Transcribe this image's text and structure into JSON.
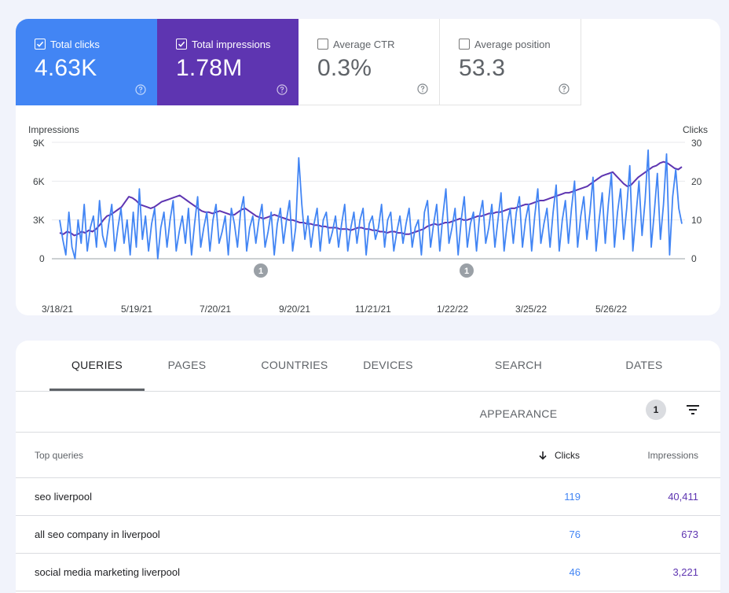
{
  "metrics": [
    {
      "label": "Total clicks",
      "value": "4.63K",
      "checked": true,
      "color": "#4285f4"
    },
    {
      "label": "Total impressions",
      "value": "1.78M",
      "checked": true,
      "color": "#5e35b1"
    },
    {
      "label": "Average CTR",
      "value": "0.3%",
      "checked": false
    },
    {
      "label": "Average position",
      "value": "53.3",
      "checked": false
    }
  ],
  "chart": {
    "left_axis_title": "Impressions",
    "right_axis_title": "Clicks",
    "left_ticks": [
      "9K",
      "6K",
      "3K",
      "0"
    ],
    "right_ticks": [
      "30",
      "20",
      "10",
      "0"
    ],
    "x_ticks": [
      "3/18/21",
      "5/19/21",
      "7/20/21",
      "9/20/21",
      "11/21/21",
      "1/22/22",
      "3/25/22",
      "5/26/22"
    ],
    "annotations": [
      "1",
      "1"
    ]
  },
  "chart_data": {
    "type": "line",
    "left_ylabel": "Impressions",
    "right_ylabel": "Clicks",
    "left_ylim": [
      0,
      9000
    ],
    "right_ylim": [
      0,
      30
    ],
    "x_start": "3/18/21",
    "x_end": "7/5/22",
    "grid": true,
    "series": [
      {
        "name": "Clicks",
        "axis": "right",
        "color": "#4285f4",
        "values": [
          10,
          5,
          1,
          12,
          3,
          0,
          10,
          4,
          14,
          2,
          8,
          11,
          3,
          15,
          6,
          3,
          9,
          14,
          2,
          8,
          13,
          4,
          10,
          1,
          12,
          3,
          18,
          5,
          11,
          2,
          9,
          13,
          0,
          8,
          12,
          3,
          10,
          15,
          2,
          7,
          11,
          4,
          13,
          1,
          9,
          16,
          3,
          8,
          12,
          2,
          10,
          14,
          4,
          7,
          11,
          1,
          13,
          9,
          3,
          12,
          16,
          2,
          8,
          11,
          4,
          10,
          14,
          3,
          7,
          12,
          1,
          9,
          13,
          4,
          10,
          15,
          2,
          8,
          26,
          14,
          5,
          11,
          3,
          9,
          13,
          2,
          10,
          12,
          4,
          7,
          11,
          3,
          9,
          14,
          2,
          8,
          12,
          4,
          10,
          13,
          1,
          9,
          11,
          5,
          8,
          14,
          3,
          10,
          12,
          2,
          7,
          11,
          4,
          9,
          13,
          3,
          8,
          10,
          1,
          12,
          15,
          3,
          9,
          14,
          2,
          11,
          18,
          4,
          8,
          13,
          1,
          10,
          16,
          3,
          9,
          12,
          2,
          11,
          15,
          4,
          8,
          14,
          3,
          10,
          17,
          2,
          9,
          13,
          4,
          12,
          16,
          3,
          10,
          14,
          2,
          11,
          18,
          4,
          9,
          13,
          3,
          12,
          19,
          2,
          10,
          15,
          4,
          13,
          20,
          3,
          11,
          16,
          5,
          12,
          21,
          2,
          10,
          17,
          4,
          14,
          22,
          3,
          12,
          18,
          5,
          13,
          24,
          2,
          11,
          20,
          6,
          15,
          28,
          3,
          12,
          22,
          5,
          14,
          27,
          1,
          16,
          23,
          13,
          9
        ]
      },
      {
        "name": "Impressions",
        "axis": "left",
        "color": "#5e35b1",
        "values": [
          2000,
          1900,
          2100,
          2000,
          1800,
          1900,
          2100,
          2000,
          2200,
          2100,
          2300,
          2600,
          3000,
          3300,
          3400,
          3600,
          3800,
          4000,
          4400,
          4800,
          4700,
          4500,
          4200,
          4100,
          4000,
          3900,
          4000,
          4200,
          4400,
          4500,
          4600,
          4700,
          4800,
          4900,
          4700,
          4500,
          4300,
          4100,
          3900,
          3700,
          3600,
          3600,
          3500,
          3600,
          3700,
          3600,
          3500,
          3400,
          3400,
          3600,
          3800,
          3900,
          3700,
          3500,
          3300,
          3200,
          3100,
          3200,
          3300,
          3400,
          3300,
          3200,
          3100,
          3000,
          3000,
          2900,
          2800,
          2800,
          2700,
          2700,
          2600,
          2600,
          2500,
          2500,
          2400,
          2400,
          2400,
          2300,
          2300,
          2300,
          2200,
          2300,
          2400,
          2400,
          2300,
          2300,
          2200,
          2200,
          2100,
          2100,
          2000,
          2100,
          2100,
          2000,
          2000,
          1900,
          1900,
          2000,
          2100,
          2200,
          2300,
          2500,
          2600,
          2700,
          2600,
          2700,
          2800,
          2800,
          2900,
          3000,
          3100,
          3000,
          3000,
          3100,
          3200,
          3300,
          3300,
          3400,
          3500,
          3500,
          3600,
          3600,
          3700,
          3800,
          3900,
          3900,
          4000,
          4100,
          4200,
          4200,
          4300,
          4400,
          4500,
          4500,
          4600,
          4700,
          4800,
          4900,
          5000,
          5100,
          5100,
          5200,
          5300,
          5400,
          5500,
          5600,
          5800,
          6000,
          6200,
          6400,
          6500,
          6600,
          6700,
          6400,
          6100,
          5800,
          5600,
          5700,
          6000,
          6300,
          6500,
          6700,
          6900,
          7100,
          7200,
          7400,
          7500,
          7400,
          7200,
          7000,
          6900,
          7100
        ]
      }
    ]
  },
  "tabs": [
    "QUERIES",
    "PAGES",
    "COUNTRIES",
    "DEVICES",
    "SEARCH APPEARANCE",
    "DATES"
  ],
  "toolbar": {
    "filter_count": "1"
  },
  "table": {
    "headers": {
      "query": "Top queries",
      "clicks": "Clicks",
      "impressions": "Impressions"
    },
    "rows": [
      {
        "query": "seo liverpool",
        "clicks": "119",
        "impressions": "40,411"
      },
      {
        "query": "all seo company in liverpool",
        "clicks": "76",
        "impressions": "673"
      },
      {
        "query": "social media marketing liverpool",
        "clicks": "46",
        "impressions": "3,221"
      }
    ]
  }
}
